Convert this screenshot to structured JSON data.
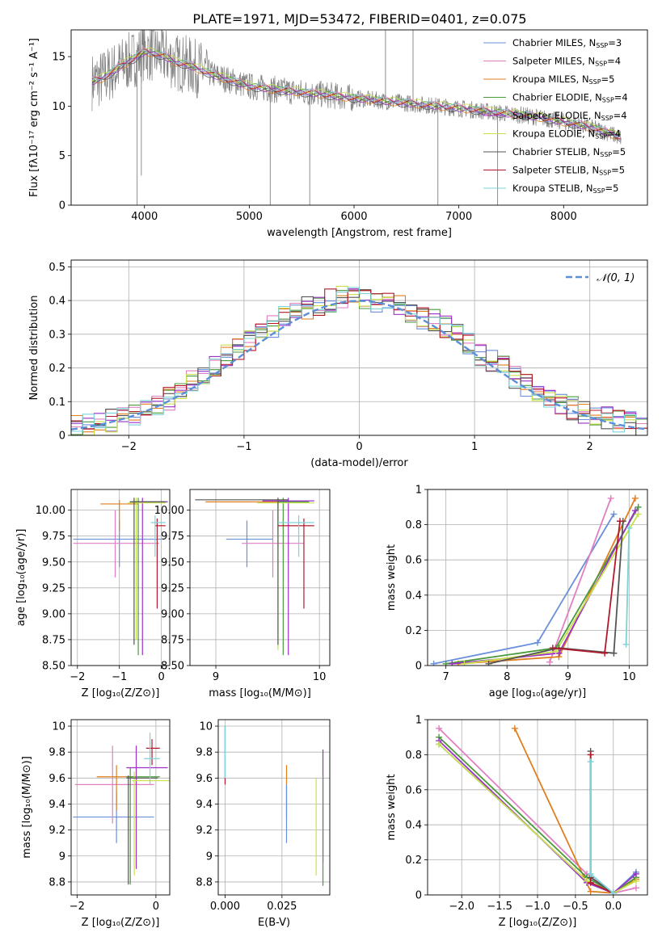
{
  "figure_title": "PLATE=1971, MJD=53472, FIBERID=0401, z=0.075",
  "colors": [
    "#6a8fdb",
    "#e07fc1",
    "#e07e1e",
    "#4a9a3c",
    "#9b30c8",
    "#c8e04a",
    "#555555",
    "#b2182b",
    "#7dd3d6"
  ],
  "models": [
    {
      "label": "Chabrier MILES, N",
      "nssp": "=3"
    },
    {
      "label": "Salpeter MILES, N",
      "nssp": "=4"
    },
    {
      "label": "Kroupa MILES, N",
      "nssp": "=5"
    },
    {
      "label": "Chabrier ELODIE, N",
      "nssp": "=4"
    },
    {
      "label": "Salpeter ELODIE, N",
      "nssp": "=4"
    },
    {
      "label": "Kroupa ELODIE, N",
      "nssp": "=4"
    },
    {
      "label": "Chabrier STELIB, N",
      "nssp": "=5"
    },
    {
      "label": "Salpeter STELIB, N",
      "nssp": "=5"
    },
    {
      "label": "Kroupa STELIB, N",
      "nssp": "=5"
    }
  ],
  "chart_data": [
    {
      "id": "spectrum",
      "type": "line",
      "xlabel": "wavelength [Angstrom, rest frame]",
      "ylabel": "Flux [fλ10⁻¹⁷ erg cm⁻² s⁻¹ A⁻¹]",
      "xlim": [
        3300,
        8800
      ],
      "ylim": [
        0,
        17.7
      ],
      "xticks": [
        4000,
        5000,
        6000,
        7000,
        8000
      ],
      "yticks": [
        0,
        5,
        10,
        15
      ],
      "legend": "upper right",
      "data_color": "#808080",
      "continuum_knots": {
        "x": [
          3500,
          3600,
          3700,
          3800,
          3900,
          4000,
          4100,
          4200,
          4300,
          4400,
          4500,
          4700,
          5000,
          5300,
          5600,
          6000,
          6500,
          7000,
          7400,
          7600,
          7800,
          8000,
          8200,
          8400,
          8550
        ],
        "y": [
          12.5,
          12.8,
          13.5,
          14.2,
          14.8,
          15.5,
          15.3,
          15.0,
          14.4,
          14.2,
          13.8,
          13.0,
          12.0,
          11.6,
          11.3,
          10.8,
          10.3,
          9.8,
          9.3,
          9.1,
          8.8,
          8.4,
          8.0,
          7.4,
          6.8
        ]
      },
      "spikes": [
        {
          "x": 3930,
          "y": 0
        },
        {
          "x": 3970,
          "y": 3
        },
        {
          "x": 5200,
          "y": 0
        },
        {
          "x": 5577,
          "y": 0
        },
        {
          "x": 6300,
          "y": 17.7
        },
        {
          "x": 6563,
          "y": 17.7
        },
        {
          "x": 6800,
          "y": 0
        },
        {
          "x": 7370,
          "y": 0
        }
      ]
    },
    {
      "id": "residuals",
      "type": "step",
      "xlabel": "(data-model)/error",
      "ylabel": "Normed distribution",
      "xlim": [
        -2.5,
        2.5
      ],
      "ylim": [
        0,
        0.52
      ],
      "xticks": [
        -2,
        -1,
        0,
        1,
        2
      ],
      "yticks": [
        0,
        0.1,
        0.2,
        0.3,
        0.4,
        0.5
      ],
      "bins": [
        -2.5,
        -2.4,
        -2.3,
        -2.2,
        -2.1,
        -2.0,
        -1.9,
        -1.8,
        -1.7,
        -1.6,
        -1.5,
        -1.4,
        -1.3,
        -1.2,
        -1.1,
        -1.0,
        -0.9,
        -0.8,
        -0.7,
        -0.6,
        -0.5,
        -0.4,
        -0.3,
        -0.2,
        -0.1,
        0.0,
        0.1,
        0.2,
        0.3,
        0.4,
        0.5,
        0.6,
        0.7,
        0.8,
        0.9,
        1.0,
        1.1,
        1.2,
        1.3,
        1.4,
        1.5,
        1.6,
        1.7,
        1.8,
        1.9,
        2.0,
        2.1,
        2.2,
        2.3,
        2.4,
        2.5
      ],
      "base": [
        0.03,
        0.035,
        0.04,
        0.045,
        0.05,
        0.06,
        0.07,
        0.09,
        0.11,
        0.13,
        0.16,
        0.18,
        0.21,
        0.24,
        0.26,
        0.28,
        0.3,
        0.32,
        0.35,
        0.37,
        0.38,
        0.39,
        0.4,
        0.41,
        0.41,
        0.41,
        0.4,
        0.4,
        0.38,
        0.37,
        0.35,
        0.34,
        0.32,
        0.3,
        0.27,
        0.24,
        0.22,
        0.2,
        0.17,
        0.15,
        0.13,
        0.11,
        0.09,
        0.08,
        0.07,
        0.06,
        0.05,
        0.04,
        0.035,
        0.03
      ],
      "legend": [
        {
          "label": "𝒩(0, 1)",
          "style": "dashed",
          "color": "#5b8fd6"
        }
      ],
      "normal_curve": {
        "mean": 0,
        "sigma": 1
      }
    },
    {
      "id": "z_vs_age",
      "type": "errorbar",
      "xlabel": "Z [log₁₀(Z/Z⊙)]",
      "ylabel": "age  [log₁₀(age/yr)]",
      "xlim": [
        -2.15,
        0.2
      ],
      "ylim": [
        8.5,
        10.2
      ],
      "xticks": [
        -2,
        -1,
        0
      ],
      "yticks": [
        8.5,
        8.75,
        9.0,
        9.25,
        9.5,
        9.75,
        10.0
      ],
      "ytick_labels": [
        "8.50",
        "8.75",
        "9.00",
        "9.25",
        "9.50",
        "9.75",
        "10.00"
      ],
      "points": [
        {
          "x": -1.0,
          "y": 9.72,
          "xe": [
            -2.1,
            0.0
          ],
          "ye": [
            9.45,
            9.9
          ],
          "c": 0
        },
        {
          "x": -1.1,
          "y": 9.68,
          "xe": [
            -2.1,
            -0.05
          ],
          "ye": [
            9.35,
            10.0
          ],
          "c": 1
        },
        {
          "x": -1.0,
          "y": 10.06,
          "xe": [
            -1.45,
            -0.55
          ],
          "ye": [
            9.8,
            10.1
          ],
          "c": 2
        },
        {
          "x": -0.55,
          "y": 10.08,
          "xe": [
            -0.75,
            0.15
          ],
          "ye": [
            8.6,
            10.12
          ],
          "c": 3
        },
        {
          "x": -0.45,
          "y": 10.08,
          "xe": [
            -0.7,
            0.15
          ],
          "ye": [
            8.6,
            10.12
          ],
          "c": 4
        },
        {
          "x": -0.6,
          "y": 10.07,
          "xe": [
            -0.8,
            0.1
          ],
          "ye": [
            8.75,
            10.12
          ],
          "c": 5
        },
        {
          "x": -0.65,
          "y": 10.08,
          "xe": [
            -0.75,
            0.1
          ],
          "ye": [
            8.7,
            10.12
          ],
          "c": 6
        },
        {
          "x": -0.1,
          "y": 9.85,
          "xe": [
            -0.15,
            0.1
          ],
          "ye": [
            9.05,
            9.92
          ],
          "c": 7
        },
        {
          "x": -0.15,
          "y": 9.88,
          "xe": [
            -0.25,
            0.1
          ],
          "ye": [
            9.55,
            9.95
          ],
          "c": 8
        }
      ]
    },
    {
      "id": "mass_vs_age",
      "type": "errorbar",
      "xlabel": "mass [log₁₀(M/M⊙)]",
      "xlim": [
        8.75,
        10.1
      ],
      "ylim": [
        8.5,
        10.2
      ],
      "xticks": [
        9,
        10
      ],
      "yticks": [
        8.5,
        8.75,
        9.0,
        9.25,
        9.5,
        9.75,
        10.0
      ],
      "ytick_labels": [
        "8.50",
        "8.75",
        "9.00",
        "9.25",
        "9.50",
        "9.75",
        "10.00"
      ],
      "points": [
        {
          "x": 9.3,
          "y": 9.72,
          "xe": [
            9.1,
            9.55
          ],
          "ye": [
            9.45,
            9.9
          ],
          "c": 0
        },
        {
          "x": 9.55,
          "y": 9.68,
          "xe": [
            9.25,
            9.85
          ],
          "ye": [
            9.35,
            10.0
          ],
          "c": 1
        },
        {
          "x": 9.6,
          "y": 10.08,
          "xe": [
            8.9,
            9.7
          ],
          "ye": [
            9.8,
            10.1
          ],
          "c": 2
        },
        {
          "x": 9.65,
          "y": 10.08,
          "xe": [
            9.6,
            9.9
          ],
          "ye": [
            8.6,
            10.12
          ],
          "c": 3
        },
        {
          "x": 9.7,
          "y": 10.09,
          "xe": [
            9.45,
            9.95
          ],
          "ye": [
            8.6,
            10.12
          ],
          "c": 4
        },
        {
          "x": 9.6,
          "y": 10.07,
          "xe": [
            9.4,
            9.95
          ],
          "ye": [
            8.65,
            10.12
          ],
          "c": 5
        },
        {
          "x": 9.6,
          "y": 10.1,
          "xe": [
            8.8,
            9.7
          ],
          "ye": [
            8.7,
            10.12
          ],
          "c": 6
        },
        {
          "x": 9.85,
          "y": 9.85,
          "xe": [
            9.6,
            9.95
          ],
          "ye": [
            9.05,
            9.92
          ],
          "c": 7
        },
        {
          "x": 9.8,
          "y": 9.88,
          "xe": [
            9.6,
            9.95
          ],
          "ye": [
            9.55,
            9.95
          ],
          "c": 8
        }
      ]
    },
    {
      "id": "age_vs_weight",
      "type": "line",
      "xlabel": "age  [log₁₀(age/yr)]",
      "ylabel": "mass weight",
      "xlim": [
        6.7,
        10.3
      ],
      "ylim": [
        0,
        1.0
      ],
      "xticks": [
        7,
        8,
        9,
        10
      ],
      "yticks": [
        0,
        0.2,
        0.4,
        0.6,
        0.8,
        1.0
      ],
      "series": [
        {
          "c": 0,
          "x": [
            6.8,
            8.5,
            9.75
          ],
          "y": [
            0.01,
            0.13,
            0.86
          ]
        },
        {
          "c": 1,
          "x": [
            8.7,
            9.7
          ],
          "y": [
            0.02,
            0.95
          ]
        },
        {
          "c": 2,
          "x": [
            7.2,
            8.85,
            10.1
          ],
          "y": [
            0.01,
            0.05,
            0.95
          ]
        },
        {
          "c": 3,
          "x": [
            7.0,
            8.8,
            10.15
          ],
          "y": [
            0.01,
            0.1,
            0.9
          ]
        },
        {
          "c": 4,
          "x": [
            7.1,
            8.85,
            10.1
          ],
          "y": [
            0.01,
            0.07,
            0.88
          ]
        },
        {
          "c": 5,
          "x": [
            7.3,
            8.8,
            10.15
          ],
          "y": [
            0.01,
            0.08,
            0.86
          ]
        },
        {
          "c": 6,
          "x": [
            7.7,
            8.85,
            9.75,
            9.9
          ],
          "y": [
            0.01,
            0.1,
            0.07,
            0.82
          ]
        },
        {
          "c": 7,
          "x": [
            8.75,
            9.6,
            9.85
          ],
          "y": [
            0.1,
            0.07,
            0.82
          ]
        },
        {
          "c": 8,
          "x": [
            9.95,
            10.0
          ],
          "y": [
            0.12,
            0.78
          ]
        }
      ]
    },
    {
      "id": "z_vs_mass",
      "type": "errorbar",
      "xlabel": "Z [log₁₀(Z/Z⊙)]",
      "ylabel": "mass [log₁₀(M/M⊙)]",
      "xlim": [
        -2.15,
        0.35
      ],
      "ylim": [
        8.7,
        10.05
      ],
      "xticks": [
        -2,
        0
      ],
      "yticks": [
        8.8,
        9.0,
        9.2,
        9.4,
        9.6,
        9.8,
        10.0
      ],
      "points": [
        {
          "x": -1.0,
          "y": 9.3,
          "xe": [
            -2.1,
            -0.05
          ],
          "ye": [
            9.1,
            9.5
          ],
          "c": 0
        },
        {
          "x": -1.1,
          "y": 9.55,
          "xe": [
            -2.05,
            -0.05
          ],
          "ye": [
            9.25,
            9.85
          ],
          "c": 1
        },
        {
          "x": -1.0,
          "y": 9.61,
          "xe": [
            -1.5,
            -0.55
          ],
          "ye": [
            9.35,
            9.7
          ],
          "c": 2
        },
        {
          "x": -0.65,
          "y": 9.61,
          "xe": [
            -0.75,
            0.1
          ],
          "ye": [
            8.78,
            9.68
          ],
          "c": 3
        },
        {
          "x": -0.5,
          "y": 9.68,
          "xe": [
            -0.75,
            0.3
          ],
          "ye": [
            8.9,
            9.85
          ],
          "c": 4
        },
        {
          "x": -0.55,
          "y": 9.58,
          "xe": [
            -0.6,
            0.35
          ],
          "ye": [
            8.85,
            9.65
          ],
          "c": 5
        },
        {
          "x": -0.7,
          "y": 9.6,
          "xe": [
            -0.75,
            0.05
          ],
          "ye": [
            8.78,
            9.62
          ],
          "c": 6
        },
        {
          "x": -0.1,
          "y": 9.83,
          "xe": [
            -0.25,
            0.1
          ],
          "ye": [
            9.7,
            9.9
          ],
          "c": 7
        },
        {
          "x": -0.15,
          "y": 9.75,
          "xe": [
            -0.3,
            0.1
          ],
          "ye": [
            9.55,
            9.95
          ],
          "c": 8
        }
      ]
    },
    {
      "id": "ebv_vs_mass",
      "type": "errorbar",
      "xlabel": "E(B-V)",
      "xlim": [
        -0.003,
        0.046
      ],
      "ylim": [
        8.7,
        10.05
      ],
      "xticks": [
        0.0,
        0.025
      ],
      "xtick_labels": [
        "0.000",
        "0.025"
      ],
      "yticks": [
        8.8,
        9.0,
        9.2,
        9.4,
        9.6,
        9.8,
        10.0
      ],
      "points": [
        {
          "x": 0.0,
          "y": 9.78,
          "xe": [
            0.0,
            0.0
          ],
          "ye": [
            9.55,
            10.0
          ],
          "c": 7
        },
        {
          "x": 0.0,
          "y": 9.9,
          "xe": [
            0.0,
            0.0
          ],
          "ye": [
            9.6,
            10.0
          ],
          "c": 8
        },
        {
          "x": 0.027,
          "y": 9.5,
          "xe": [
            0.027,
            0.027
          ],
          "ye": [
            9.3,
            9.7
          ],
          "c": 2
        },
        {
          "x": 0.027,
          "y": 9.35,
          "xe": [
            0.027,
            0.027
          ],
          "ye": [
            9.1,
            9.55
          ],
          "c": 0
        },
        {
          "x": 0.04,
          "y": 9.2,
          "xe": [
            0.04,
            0.04
          ],
          "ye": [
            8.85,
            9.6
          ],
          "c": 5
        },
        {
          "x": 0.043,
          "y": 9.4,
          "xe": [
            0.043,
            0.043
          ],
          "ye": [
            8.95,
            9.82
          ],
          "c": 4
        },
        {
          "x": 0.043,
          "y": 9.2,
          "xe": [
            0.043,
            0.043
          ],
          "ye": [
            8.77,
            9.62
          ],
          "c": 3
        }
      ]
    },
    {
      "id": "z_vs_weight",
      "type": "line",
      "xlabel": "Z [log₁₀(Z/Z⊙)]",
      "ylabel": "mass weight",
      "xlim": [
        -2.45,
        0.45
      ],
      "ylim": [
        0,
        1.0
      ],
      "xticks": [
        -2.0,
        -1.5,
        -1.0,
        -0.5,
        0.0
      ],
      "xtick_labels": [
        "−2.0",
        "−1.5",
        "−1.0",
        "−0.5",
        "0.0"
      ],
      "yticks": [
        0,
        0.2,
        0.4,
        0.6,
        0.8,
        1.0
      ],
      "series": [
        {
          "c": 0,
          "x": [
            -2.3,
            -0.35,
            0.0,
            0.3
          ],
          "y": [
            0.86,
            0.08,
            0.01,
            0.13
          ]
        },
        {
          "c": 1,
          "x": [
            -2.3,
            -0.35,
            0.0,
            0.3
          ],
          "y": [
            0.95,
            0.12,
            0.01,
            0.04
          ]
        },
        {
          "c": 2,
          "x": [
            -1.3,
            -0.3,
            0.0,
            0.3
          ],
          "y": [
            0.95,
            0.02,
            0.01,
            0.09
          ]
        },
        {
          "c": 3,
          "x": [
            -2.3,
            -0.35,
            0.0,
            0.3
          ],
          "y": [
            0.9,
            0.1,
            0.01,
            0.1
          ]
        },
        {
          "c": 4,
          "x": [
            -2.3,
            -0.35,
            0.0,
            0.3
          ],
          "y": [
            0.88,
            0.07,
            0.01,
            0.12
          ]
        },
        {
          "c": 5,
          "x": [
            -2.3,
            -0.35,
            0.0,
            0.3
          ],
          "y": [
            0.86,
            0.08,
            0.01,
            0.08
          ]
        },
        {
          "c": 6,
          "x": [
            -0.3,
            -0.3,
            0.0
          ],
          "y": [
            0.82,
            0.1,
            0.01
          ]
        },
        {
          "c": 7,
          "x": [
            -0.3,
            -0.3,
            0.0
          ],
          "y": [
            0.8,
            0.07,
            0.01
          ]
        },
        {
          "c": 8,
          "x": [
            -0.3,
            -0.3,
            0.0
          ],
          "y": [
            0.76,
            0.12,
            0.01
          ]
        }
      ]
    }
  ]
}
